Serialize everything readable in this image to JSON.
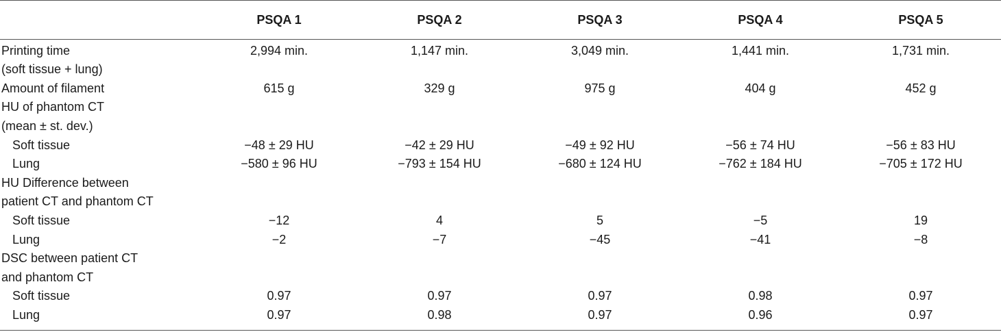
{
  "table": {
    "headers": [
      "",
      "PSQA 1",
      "PSQA 2",
      "PSQA 3",
      "PSQA 4",
      "PSQA 5"
    ],
    "rows": [
      {
        "label": "Printing time",
        "indent": false,
        "values": [
          "2,994 min.",
          "1,147 min.",
          "3,049 min.",
          "1,441 min.",
          "1,731 min."
        ]
      },
      {
        "label": "(soft tissue + lung)",
        "indent": false,
        "values": [
          "",
          "",
          "",
          "",
          ""
        ]
      },
      {
        "label": "Amount of filament",
        "indent": false,
        "values": [
          "615 g",
          "329 g",
          "975 g",
          "404 g",
          "452 g"
        ]
      },
      {
        "label": "HU of phantom CT",
        "indent": false,
        "values": [
          "",
          "",
          "",
          "",
          ""
        ]
      },
      {
        "label": "(mean ± st. dev.)",
        "indent": false,
        "values": [
          "",
          "",
          "",
          "",
          ""
        ]
      },
      {
        "label": "Soft tissue",
        "indent": true,
        "values": [
          "−48 ± 29 HU",
          "−42 ± 29 HU",
          "−49 ± 92 HU",
          "−56 ± 74 HU",
          "−56 ± 83 HU"
        ]
      },
      {
        "label": "Lung",
        "indent": true,
        "values": [
          "−580 ± 96 HU",
          "−793 ± 154 HU",
          "−680 ± 124 HU",
          "−762 ± 184 HU",
          "−705 ± 172 HU"
        ]
      },
      {
        "label": "HU Difference between",
        "indent": false,
        "values": [
          "",
          "",
          "",
          "",
          ""
        ]
      },
      {
        "label": "patient CT and phantom CT",
        "indent": false,
        "values": [
          "",
          "",
          "",
          "",
          ""
        ]
      },
      {
        "label": "Soft tissue",
        "indent": true,
        "values": [
          "−12",
          "4",
          "5",
          "−5",
          "19"
        ]
      },
      {
        "label": "Lung",
        "indent": true,
        "values": [
          "−2",
          "−7",
          "−45",
          "−41",
          "−8"
        ]
      },
      {
        "label": "DSC between patient CT",
        "indent": false,
        "values": [
          "",
          "",
          "",
          "",
          ""
        ]
      },
      {
        "label": "and phantom CT",
        "indent": false,
        "values": [
          "",
          "",
          "",
          "",
          ""
        ]
      },
      {
        "label": "Soft tissue",
        "indent": true,
        "values": [
          "0.97",
          "0.97",
          "0.97",
          "0.98",
          "0.97"
        ]
      },
      {
        "label": "Lung",
        "indent": true,
        "values": [
          "0.97",
          "0.98",
          "0.97",
          "0.96",
          "0.97"
        ]
      }
    ]
  }
}
